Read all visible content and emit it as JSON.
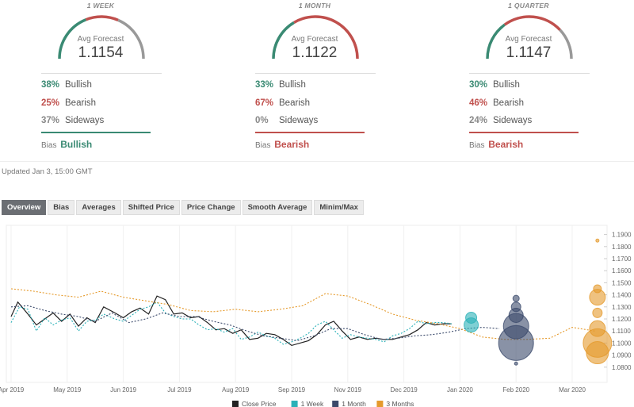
{
  "forecasts": [
    {
      "period": "1 WEEK",
      "avg_label": "Avg Forecast",
      "avg_value": "1.1154",
      "bullish_pct": "38%",
      "bullish_label": "Bullish",
      "bearish_pct": "25%",
      "bearish_label": "Bearish",
      "sideways_pct": "37%",
      "sideways_label": "Sideways",
      "bias_label": "Bias",
      "bias_value": "Bullish",
      "bias_color": "#3a8a73",
      "shares": [
        38,
        25,
        37
      ]
    },
    {
      "period": "1 MONTH",
      "avg_label": "Avg Forecast",
      "avg_value": "1.1122",
      "bullish_pct": "33%",
      "bullish_label": "Bullish",
      "bearish_pct": "67%",
      "bearish_label": "Bearish",
      "sideways_pct": "0%",
      "sideways_label": "Sideways",
      "bias_label": "Bias",
      "bias_value": "Bearish",
      "bias_color": "#c0504d",
      "shares": [
        33,
        67,
        0
      ]
    },
    {
      "period": "1 QUARTER",
      "avg_label": "Avg Forecast",
      "avg_value": "1.1147",
      "bullish_pct": "30%",
      "bullish_label": "Bullish",
      "bearish_pct": "46%",
      "bearish_label": "Bearish",
      "sideways_pct": "24%",
      "sideways_label": "Sideways",
      "bias_label": "Bias",
      "bias_value": "Bearish",
      "bias_color": "#c0504d",
      "shares": [
        30,
        46,
        24
      ]
    }
  ],
  "gauge_colors": {
    "bullish": "#3a8a73",
    "bearish": "#c0504d",
    "sideways": "#999999"
  },
  "updated": "Updated Jan 3, 15:00 GMT",
  "tabs": [
    "Overview",
    "Bias",
    "Averages",
    "Shifted Price",
    "Price Change",
    "Smooth Average",
    "Minim/Max"
  ],
  "active_tab": "Overview",
  "chart_data": {
    "type": "line",
    "ylim": [
      1.07,
      1.195
    ],
    "yticks": [
      "1.0800",
      "1.0900",
      "1.1000",
      "1.1100",
      "1.1200",
      "1.1300",
      "1.1400",
      "1.1500",
      "1.1600",
      "1.1700",
      "1.1800",
      "1.1900"
    ],
    "xticks": [
      {
        "label": "Apr 2019",
        "t": 0
      },
      {
        "label": "May 2019",
        "t": 1
      },
      {
        "label": "Jun 2019",
        "t": 2
      },
      {
        "label": "Jul 2019",
        "t": 3
      },
      {
        "label": "Aug 2019",
        "t": 4
      },
      {
        "label": "Sep 2019",
        "t": 5
      },
      {
        "label": "Nov 2019",
        "t": 6
      },
      {
        "label": "Dec 2019",
        "t": 7
      },
      {
        "label": "Jan 2020",
        "t": 8
      },
      {
        "label": "Feb 2020",
        "t": 9
      },
      {
        "label": "Mar 2020",
        "t": 10
      }
    ],
    "series": [
      {
        "name": "Close Price",
        "color": "#222222",
        "dash": false,
        "points": [
          [
            0,
            1.122
          ],
          [
            0.12,
            1.134
          ],
          [
            0.3,
            1.124
          ],
          [
            0.45,
            1.115
          ],
          [
            0.6,
            1.12
          ],
          [
            0.75,
            1.125
          ],
          [
            0.9,
            1.118
          ],
          [
            1.05,
            1.124
          ],
          [
            1.2,
            1.114
          ],
          [
            1.35,
            1.121
          ],
          [
            1.5,
            1.117
          ],
          [
            1.65,
            1.13
          ],
          [
            1.85,
            1.125
          ],
          [
            2.0,
            1.121
          ],
          [
            2.15,
            1.126
          ],
          [
            2.3,
            1.129
          ],
          [
            2.45,
            1.124
          ],
          [
            2.6,
            1.139
          ],
          [
            2.75,
            1.136
          ],
          [
            2.9,
            1.124
          ],
          [
            3.05,
            1.125
          ],
          [
            3.2,
            1.121
          ],
          [
            3.35,
            1.122
          ],
          [
            3.5,
            1.117
          ],
          [
            3.65,
            1.111
          ],
          [
            3.8,
            1.112
          ],
          [
            3.95,
            1.108
          ],
          [
            4.1,
            1.111
          ],
          [
            4.25,
            1.103
          ],
          [
            4.4,
            1.104
          ],
          [
            4.55,
            1.108
          ],
          [
            4.7,
            1.107
          ],
          [
            4.85,
            1.103
          ],
          [
            5.0,
            1.098
          ],
          [
            5.15,
            1.1
          ],
          [
            5.3,
            1.102
          ],
          [
            5.45,
            1.107
          ],
          [
            5.6,
            1.115
          ],
          [
            5.75,
            1.118
          ],
          [
            5.9,
            1.11
          ],
          [
            6.05,
            1.103
          ],
          [
            6.2,
            1.105
          ],
          [
            6.35,
            1.103
          ],
          [
            6.5,
            1.104
          ],
          [
            6.65,
            1.103
          ],
          [
            6.8,
            1.103
          ],
          [
            6.95,
            1.105
          ],
          [
            7.1,
            1.107
          ],
          [
            7.25,
            1.111
          ],
          [
            7.4,
            1.117
          ],
          [
            7.55,
            1.115
          ],
          [
            7.7,
            1.116
          ],
          [
            7.85,
            1.116
          ]
        ]
      },
      {
        "name": "1 Week",
        "color": "#2ab1b8",
        "dash": true,
        "points": [
          [
            0,
            1.117
          ],
          [
            0.15,
            1.13
          ],
          [
            0.3,
            1.128
          ],
          [
            0.45,
            1.11
          ],
          [
            0.6,
            1.121
          ],
          [
            0.75,
            1.115
          ],
          [
            0.9,
            1.119
          ],
          [
            1.05,
            1.121
          ],
          [
            1.2,
            1.11
          ],
          [
            1.35,
            1.118
          ],
          [
            1.5,
            1.119
          ],
          [
            1.65,
            1.124
          ],
          [
            1.85,
            1.12
          ],
          [
            2.0,
            1.118
          ],
          [
            2.15,
            1.123
          ],
          [
            2.3,
            1.128
          ],
          [
            2.45,
            1.13
          ],
          [
            2.6,
            1.134
          ],
          [
            2.75,
            1.125
          ],
          [
            2.9,
            1.122
          ],
          [
            3.05,
            1.12
          ],
          [
            3.2,
            1.12
          ],
          [
            3.35,
            1.115
          ],
          [
            3.5,
            1.111
          ],
          [
            3.65,
            1.112
          ],
          [
            3.8,
            1.109
          ],
          [
            3.95,
            1.112
          ],
          [
            4.1,
            1.103
          ],
          [
            4.25,
            1.105
          ],
          [
            4.4,
            1.109
          ],
          [
            4.55,
            1.106
          ],
          [
            4.7,
            1.104
          ],
          [
            4.85,
            1.099
          ],
          [
            5.0,
            1.101
          ],
          [
            5.15,
            1.104
          ],
          [
            5.3,
            1.108
          ],
          [
            5.45,
            1.115
          ],
          [
            5.6,
            1.118
          ],
          [
            5.75,
            1.111
          ],
          [
            5.9,
            1.104
          ],
          [
            6.05,
            1.107
          ],
          [
            6.2,
            1.105
          ],
          [
            6.35,
            1.104
          ],
          [
            6.5,
            1.103
          ],
          [
            6.65,
            1.101
          ],
          [
            6.8,
            1.106
          ],
          [
            6.95,
            1.108
          ],
          [
            7.1,
            1.112
          ],
          [
            7.25,
            1.118
          ],
          [
            7.4,
            1.116
          ],
          [
            7.55,
            1.117
          ],
          [
            7.7,
            1.117
          ],
          [
            7.85,
            1.116
          ]
        ]
      },
      {
        "name": "1 Month",
        "color": "#3b4a6b",
        "dash": true,
        "points": [
          [
            0,
            1.13
          ],
          [
            0.3,
            1.131
          ],
          [
            0.6,
            1.127
          ],
          [
            0.9,
            1.124
          ],
          [
            1.2,
            1.122
          ],
          [
            1.5,
            1.118
          ],
          [
            1.8,
            1.125
          ],
          [
            2.1,
            1.117
          ],
          [
            2.4,
            1.12
          ],
          [
            2.7,
            1.125
          ],
          [
            3.0,
            1.122
          ],
          [
            3.3,
            1.122
          ],
          [
            3.6,
            1.118
          ],
          [
            3.9,
            1.115
          ],
          [
            4.2,
            1.11
          ],
          [
            4.5,
            1.106
          ],
          [
            4.8,
            1.104
          ],
          [
            5.1,
            1.102
          ],
          [
            5.4,
            1.106
          ],
          [
            5.7,
            1.112
          ],
          [
            6.0,
            1.112
          ],
          [
            6.3,
            1.107
          ],
          [
            6.6,
            1.103
          ],
          [
            6.9,
            1.104
          ],
          [
            7.2,
            1.106
          ],
          [
            7.5,
            1.107
          ],
          [
            7.8,
            1.109
          ],
          [
            8.1,
            1.112
          ],
          [
            8.4,
            1.113
          ],
          [
            8.7,
            1.112
          ]
        ]
      },
      {
        "name": "3 Months",
        "color": "#e59a2c",
        "dash": true,
        "points": [
          [
            0,
            1.145
          ],
          [
            0.4,
            1.143
          ],
          [
            0.8,
            1.14
          ],
          [
            1.2,
            1.138
          ],
          [
            1.6,
            1.143
          ],
          [
            2.0,
            1.138
          ],
          [
            2.4,
            1.135
          ],
          [
            2.8,
            1.132
          ],
          [
            3.2,
            1.127
          ],
          [
            3.6,
            1.126
          ],
          [
            4.0,
            1.128
          ],
          [
            4.4,
            1.126
          ],
          [
            4.8,
            1.128
          ],
          [
            5.2,
            1.131
          ],
          [
            5.6,
            1.141
          ],
          [
            6.0,
            1.139
          ],
          [
            6.4,
            1.132
          ],
          [
            6.8,
            1.124
          ],
          [
            7.2,
            1.119
          ],
          [
            7.6,
            1.116
          ],
          [
            8.0,
            1.112
          ],
          [
            8.4,
            1.105
          ],
          [
            8.8,
            1.103
          ],
          [
            9.2,
            1.103
          ],
          [
            9.6,
            1.104
          ],
          [
            10.0,
            1.113
          ],
          [
            10.4,
            1.11
          ]
        ]
      }
    ],
    "bubbles": [
      {
        "t": 8.2,
        "y": 1.121,
        "r": 7,
        "series": "1 Week"
      },
      {
        "t": 8.2,
        "y": 1.115,
        "r": 9,
        "series": "1 Week"
      },
      {
        "t": 9.0,
        "y": 1.137,
        "r": 4,
        "series": "1 Month"
      },
      {
        "t": 9.0,
        "y": 1.13,
        "r": 6,
        "series": "1 Month"
      },
      {
        "t": 9.0,
        "y": 1.123,
        "r": 9,
        "series": "1 Month"
      },
      {
        "t": 9.0,
        "y": 1.114,
        "r": 16,
        "series": "1 Month"
      },
      {
        "t": 9.0,
        "y": 1.1,
        "r": 22,
        "series": "1 Month"
      },
      {
        "t": 9.0,
        "y": 1.083,
        "r": 2,
        "series": "1 Month"
      },
      {
        "t": 10.45,
        "y": 1.185,
        "r": 2,
        "series": "3 Months"
      },
      {
        "t": 10.45,
        "y": 1.145,
        "r": 5,
        "series": "3 Months"
      },
      {
        "t": 10.45,
        "y": 1.138,
        "r": 10,
        "series": "3 Months"
      },
      {
        "t": 10.45,
        "y": 1.125,
        "r": 6,
        "series": "3 Months"
      },
      {
        "t": 10.45,
        "y": 1.112,
        "r": 10,
        "series": "3 Months"
      },
      {
        "t": 10.45,
        "y": 1.1,
        "r": 18,
        "series": "3 Months"
      },
      {
        "t": 10.45,
        "y": 1.092,
        "r": 14,
        "series": "3 Months"
      }
    ],
    "legend": [
      "Close Price",
      "1 Week",
      "1 Month",
      "3 Months"
    ]
  }
}
